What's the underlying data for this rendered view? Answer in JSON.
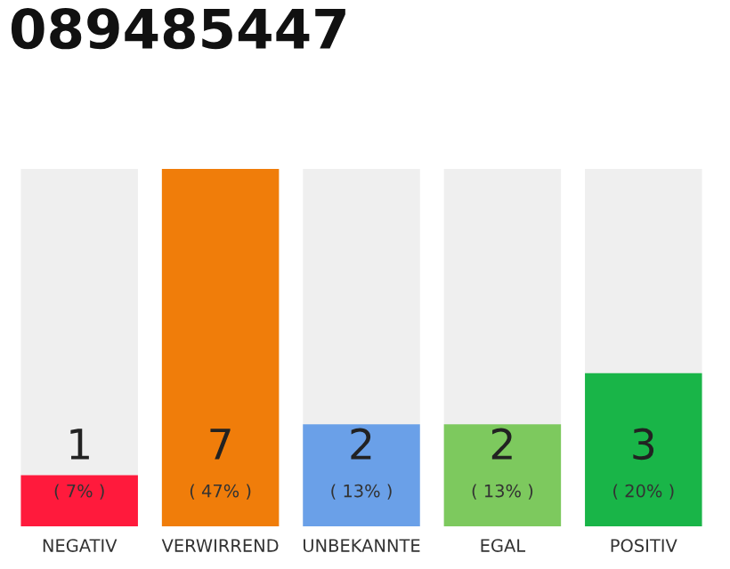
{
  "chart_data": {
    "type": "bar",
    "title": "089485447",
    "categories": [
      "NEGATIV",
      "VERWIRREND",
      "UNBEKANNTE",
      "EGAL",
      "POSITIV"
    ],
    "values": [
      1,
      7,
      2,
      2,
      3
    ],
    "colors": [
      "#ff1a3c",
      "#f07d0a",
      "#6aa0e8",
      "#7dc95e",
      "#19b548"
    ],
    "data_labels": true,
    "annotations": [
      "( 7% )",
      "( 47% )",
      "( 13% )",
      "( 13% )",
      "( 20% )"
    ],
    "grid": false,
    "legend": false
  }
}
